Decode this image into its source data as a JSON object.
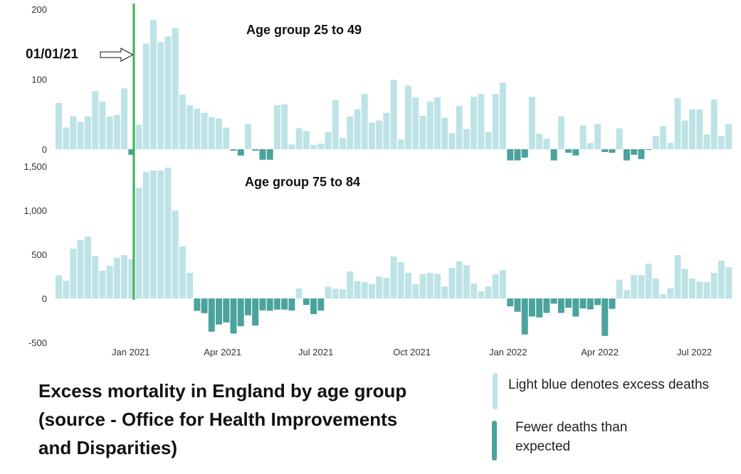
{
  "colors": {
    "excess": "#bde3e6",
    "fewer": "#4aa39c",
    "marker_line": "#3cb054"
  },
  "main_title": {
    "lines": [
      "Excess mortality in England  by age group",
      "(source - Office for Health Improvements",
      "and Disparities)"
    ]
  },
  "legend": {
    "excess": "Light blue denotes excess deaths",
    "fewer_line1": "Fewer deaths than",
    "fewer_line2": "expected"
  },
  "annotation": {
    "label": "01/01/21"
  },
  "chart_data": [
    {
      "type": "bar",
      "title": "Age group 25 to 49",
      "xlabel": "",
      "ylabel": "",
      "ylim": [
        -20,
        200
      ],
      "yticks": [
        {
          "value": 200,
          "label": "200"
        },
        {
          "value": 100,
          "label": "100"
        },
        {
          "value": 0,
          "label": "0"
        }
      ],
      "values": [
        66,
        31,
        47,
        39,
        47,
        83,
        68,
        47,
        49,
        87,
        -8,
        35,
        151,
        185,
        153,
        161,
        173,
        78,
        63,
        58,
        52,
        46,
        44,
        31,
        -2,
        -9,
        36,
        -2,
        -15,
        -15,
        63,
        64,
        7,
        30,
        26,
        6,
        8,
        25,
        70,
        16,
        47,
        57,
        79,
        38,
        41,
        52,
        99,
        14,
        91,
        74,
        48,
        68,
        74,
        45,
        23,
        62,
        29,
        75,
        79,
        25,
        79,
        95,
        -16,
        -16,
        -12,
        75,
        22,
        15,
        -16,
        47,
        -5,
        -9,
        34,
        9,
        36,
        -4,
        -5,
        30,
        -16,
        -8,
        -14,
        -1,
        19,
        33,
        9,
        73,
        41,
        57,
        57,
        21,
        71,
        19,
        36
      ]
    },
    {
      "type": "bar",
      "title": "Age group 75 to 84",
      "xlabel": "",
      "ylabel": "",
      "ylim": [
        -500,
        1500
      ],
      "yticks": [
        {
          "value": 1500,
          "label": "1,500"
        },
        {
          "value": 1000,
          "label": "1,000"
        },
        {
          "value": 500,
          "label": "500"
        },
        {
          "value": 0,
          "label": "0"
        },
        {
          "value": -500,
          "label": "-500"
        }
      ],
      "xticks": [
        {
          "week": 9.9,
          "label": "Jan 2021"
        },
        {
          "week": 22.5,
          "label": "Apr 2021"
        },
        {
          "week": 35.3,
          "label": "Jul 2021"
        },
        {
          "week": 48.5,
          "label": "Oct 2021"
        },
        {
          "week": 61.7,
          "label": "Jan 2022"
        },
        {
          "week": 74.3,
          "label": "Apr 2022"
        },
        {
          "week": 87.3,
          "label": "Jul 2022"
        }
      ],
      "values": [
        261,
        202,
        565,
        664,
        702,
        479,
        315,
        371,
        463,
        492,
        447,
        1256,
        1434,
        1453,
        1453,
        1485,
        998,
        592,
        291,
        -140,
        -167,
        -377,
        -296,
        -272,
        -398,
        -315,
        -191,
        -307,
        -135,
        -140,
        -126,
        -126,
        -137,
        113,
        -73,
        -178,
        -137,
        132,
        110,
        105,
        307,
        199,
        186,
        164,
        250,
        234,
        476,
        412,
        291,
        161,
        277,
        291,
        280,
        137,
        347,
        420,
        377,
        170,
        81,
        137,
        274,
        323,
        -89,
        -151,
        -409,
        -205,
        -215,
        -164,
        -59,
        -164,
        -105,
        -205,
        -113,
        -124,
        -75,
        -425,
        -118,
        213,
        94,
        266,
        266,
        395,
        226,
        46,
        116,
        492,
        336,
        228,
        191,
        186,
        291,
        428,
        355
      ]
    }
  ],
  "marker_week": 10.75
}
